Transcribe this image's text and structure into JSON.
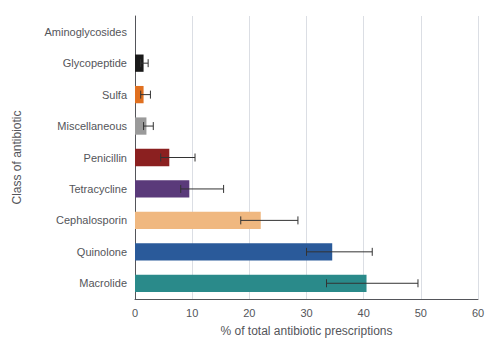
{
  "chart_data": {
    "type": "bar",
    "orientation": "horizontal",
    "categories": [
      "Aminoglycosides",
      "Glycopeptide",
      "Sulfa",
      "Miscellaneous",
      "Penicillin",
      "Tetracycline",
      "Cephalosporin",
      "Quinolone",
      "Macrolide"
    ],
    "values": [
      0.0,
      1.5,
      1.5,
      2.0,
      6.0,
      9.5,
      22.0,
      34.5,
      40.5
    ],
    "error_lower": [
      0.0,
      0.5,
      0.5,
      0.5,
      1.5,
      1.5,
      3.5,
      4.5,
      7.0
    ],
    "error_upper": [
      0.0,
      0.8,
      1.2,
      1.2,
      4.5,
      6.0,
      6.5,
      7.0,
      9.0
    ],
    "colors": [
      "#e8e8e8",
      "#1a1a1a",
      "#e07020",
      "#9a9a9a",
      "#8b2020",
      "#5a3a7a",
      "#f0b880",
      "#2a5a9a",
      "#2a8a8a"
    ],
    "xlabel": "% of total antibiotic prescriptions",
    "ylabel": "Class of antibiotic",
    "xlim": [
      0,
      60
    ],
    "xticks": [
      0,
      10,
      20,
      30,
      40,
      50,
      60
    ],
    "grid": true
  }
}
